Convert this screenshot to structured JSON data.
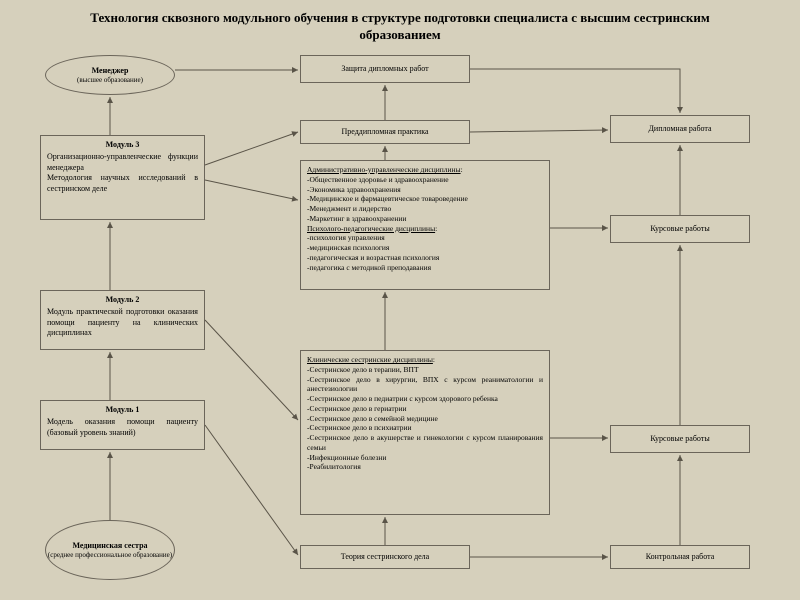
{
  "title": "Технология сквозного модульного обучения в структуре подготовки специалиста с высшим сестринским образованием",
  "ellipses": {
    "top": {
      "bold": "Менеджер",
      "sub": "(высшее образование)"
    },
    "bottom": {
      "bold": "Медицинская сестра",
      "sub": "(среднее профессиональное образование)"
    }
  },
  "modules": {
    "m3": {
      "hdr": "Модуль 3",
      "body": "Организационно-управленческие функции менеджера\nМетодология научных исследований в сестринском деле"
    },
    "m2": {
      "hdr": "Модуль 2",
      "body": "Модуль практической подготовки оказания помощи пациенту на клинических дисциплинах"
    },
    "m1": {
      "hdr": "Модуль 1",
      "body": "Модель оказания помощи пациенту (базовый уровень знаний)"
    }
  },
  "centerBoxes": {
    "defense": "Защита дипломных работ",
    "practice": "Преддипломная практика",
    "theory": "Теория сестринского дела"
  },
  "disc1": {
    "h1": "Административно-управленческие дисциплины",
    "l1": [
      "-Общественное здоровье и здравоохранение",
      "-Экономика здравоохранения",
      "-Медицинское и фармацевтическое товароведение",
      "-Менеджмент и лидерство",
      "-Маркетинг в здравоохранении"
    ],
    "h2": "Психолого-педагогические дисциплины",
    "l2": [
      "-психология управления",
      "-медицинская психология",
      "-педагогическая и возрастная психология",
      "-педагогика с методикой преподавания"
    ]
  },
  "disc2": {
    "h": "Клинические сестринские дисциплины",
    "l": [
      "-Сестринское дело в терапии, ВПТ",
      "-Сестринское дело в хирургии, ВПХ с курсом реаниматологии и анестезиологии",
      "-Сестринское дело в педиатрии с курсом здорового ребенка",
      "-Сестринское дело в гериатрии",
      "-Сестринское дело в семейной медицине",
      "-Сестринское дело в психиатрии",
      "-Сестринское дело в акушерстве и гинекологии с курсом планирования семьи",
      "-Инфекционные болезни",
      "-Реабилитология"
    ]
  },
  "right": {
    "diploma": "Дипломная работа",
    "course1": "Курсовые работы",
    "course2": "Курсовые работы",
    "control": "Контрольная работа"
  },
  "style": {
    "bg": "#d6d0bc",
    "border": "#6b655a",
    "arrow": "#5a5448"
  }
}
